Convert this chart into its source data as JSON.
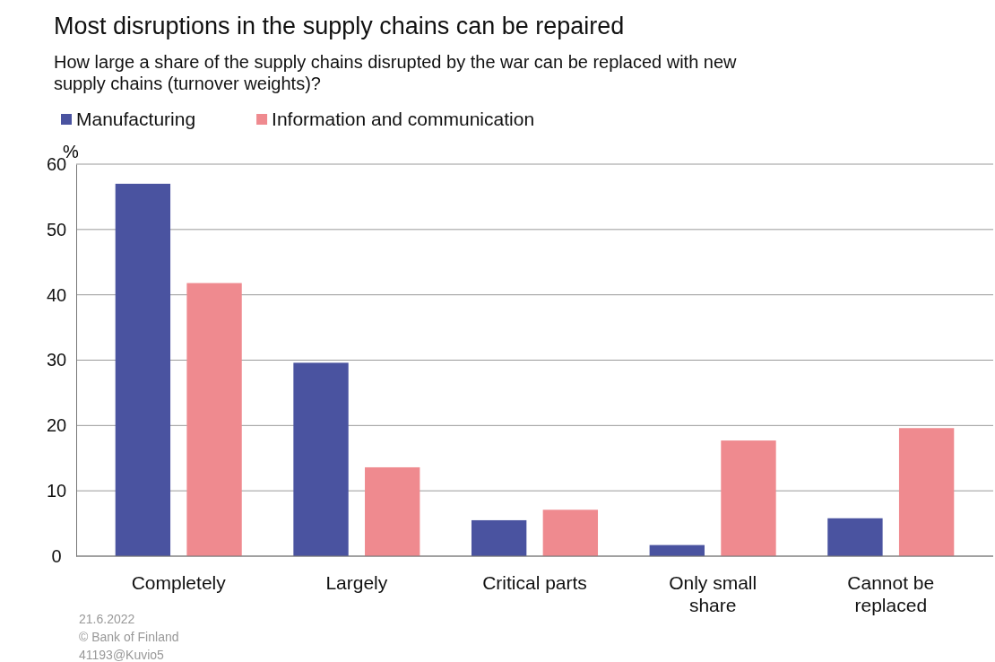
{
  "chart_data": {
    "type": "bar",
    "title": "Most disruptions in the supply chains can be repaired",
    "subtitle": "How large a share of the supply chains disrupted by the war can be replaced with new supply chains (turnover weights)?",
    "ylabel": "%",
    "categories": [
      "Completely",
      "Largely",
      "Critical parts",
      "Only small share",
      "Cannot be replaced"
    ],
    "series": [
      {
        "name": "Manufacturing",
        "color": "#4a53a0",
        "values": [
          57.0,
          29.6,
          5.5,
          1.7,
          5.8
        ]
      },
      {
        "name": "Information and communication",
        "color": "#ef8a8f",
        "values": [
          41.8,
          13.6,
          7.1,
          17.7,
          19.6
        ]
      }
    ],
    "ylim": [
      0,
      60
    ],
    "yticks": [
      0,
      10,
      20,
      30,
      40,
      50,
      60
    ],
    "grid": "y",
    "legend": "top left",
    "annotations": [
      "21.6.2022",
      "© Bank of Finland",
      "41193@Kuvio5"
    ]
  }
}
